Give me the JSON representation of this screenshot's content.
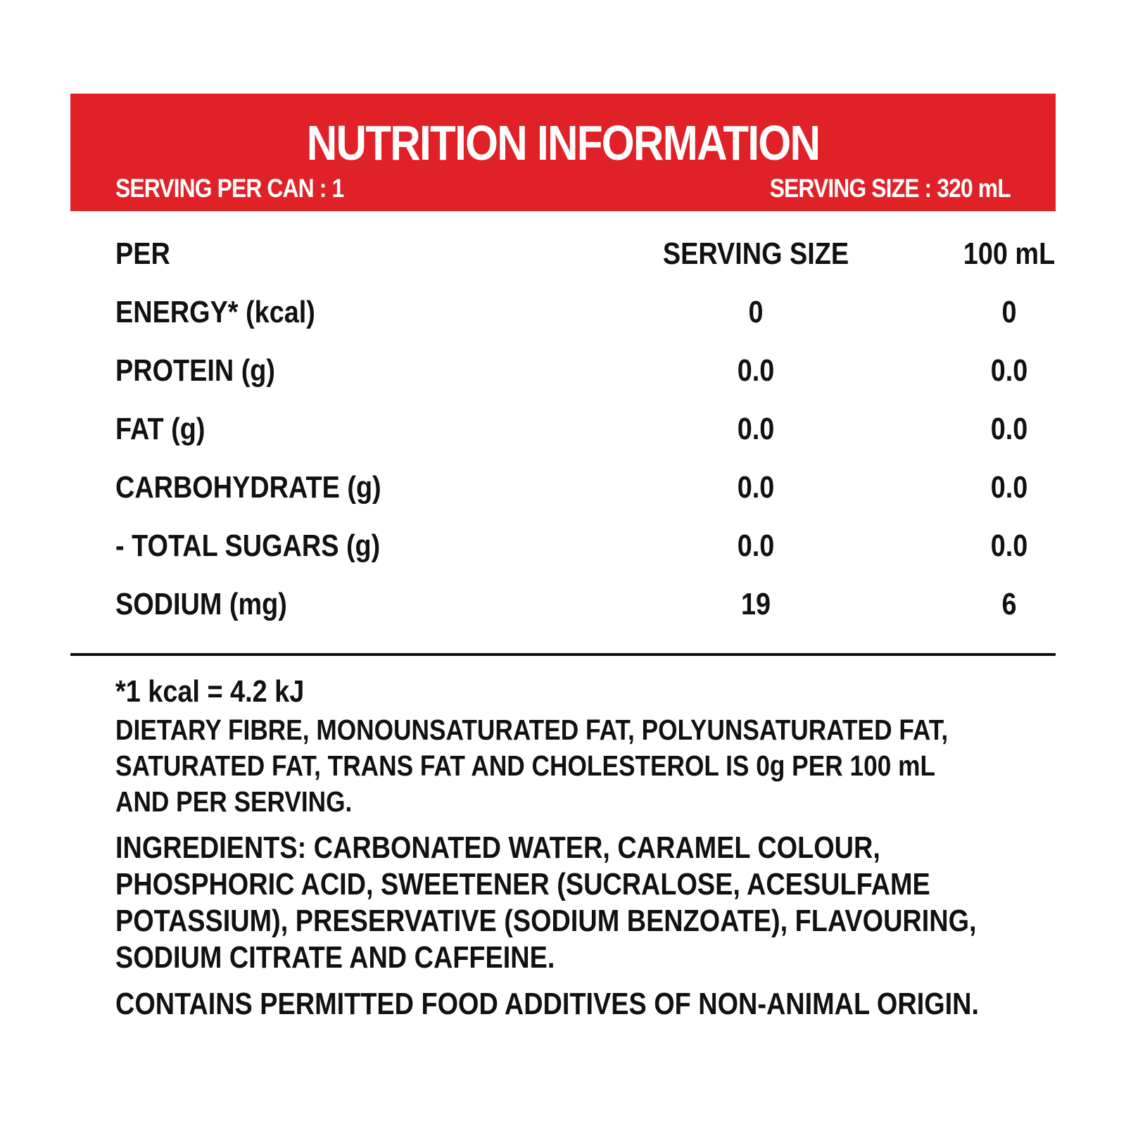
{
  "banner": {
    "title": "NUTRITION INFORMATION",
    "servings_per_can": "SERVING PER CAN : 1",
    "serving_size": "SERVING SIZE : 320 mL",
    "background_color": "#e02128"
  },
  "table": {
    "headers": [
      "PER",
      "SERVING SIZE",
      "100 mL"
    ],
    "rows": [
      {
        "label": "ENERGY* (kcal)",
        "per_serving": "0",
        "per_100ml": "0"
      },
      {
        "label": "PROTEIN (g)",
        "per_serving": "0.0",
        "per_100ml": "0.0"
      },
      {
        "label": "FAT (g)",
        "per_serving": "0.0",
        "per_100ml": "0.0"
      },
      {
        "label": "CARBOHYDRATE (g)",
        "per_serving": "0.0",
        "per_100ml": "0.0"
      },
      {
        "label": "- TOTAL SUGARS (g)",
        "per_serving": "0.0",
        "per_100ml": "0.0"
      },
      {
        "label": "SODIUM (mg)",
        "per_serving": "19",
        "per_100ml": "6"
      }
    ]
  },
  "notes": {
    "kcal_conversion": "*1 kcal = 4.2 kJ",
    "zero_nutrients": "DIETARY FIBRE, MONOUNSATURATED FAT, POLYUNSATURATED FAT, SATURATED FAT, TRANS FAT AND CHOLESTEROL IS 0g PER 100 mL AND PER SERVING.",
    "ingredients": "INGREDIENTS: CARBONATED WATER, CARAMEL COLOUR, PHOSPHORIC ACID, SWEETENER (SUCRALOSE, ACESULFAME POTASSIUM), PRESERVATIVE (SODIUM BENZOATE), FLAVOURING, SODIUM CITRATE AND CAFFEINE.",
    "additives": "CONTAINS PERMITTED FOOD ADDITIVES OF NON-ANIMAL ORIGIN."
  }
}
